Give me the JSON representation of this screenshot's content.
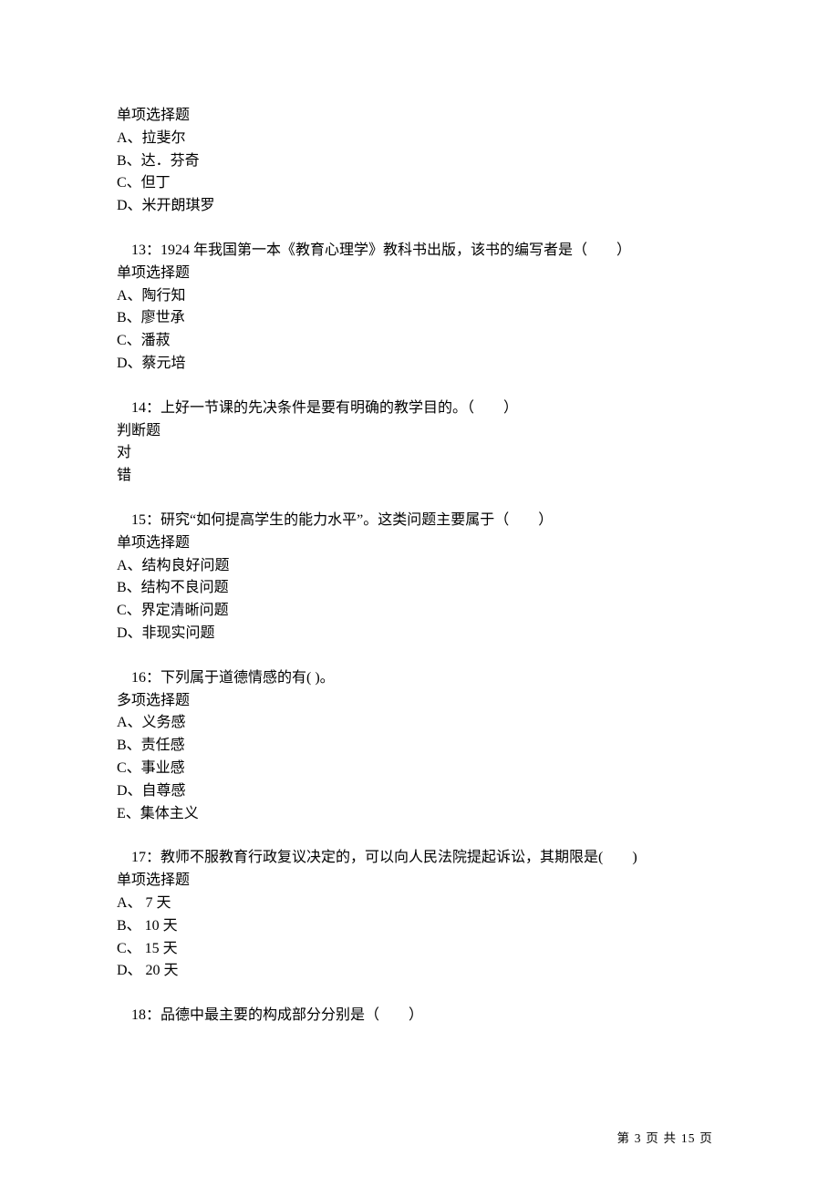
{
  "q12": {
    "type": "单项选择题",
    "options": {
      "a": "A、拉斐尔",
      "b": "B、达．芬奇",
      "c": "C、但丁",
      "d": "D、米开朗琪罗"
    }
  },
  "q13": {
    "title": "13：1924 年我国第一本《教育心理学》教科书出版，该书的编写者是（　　）",
    "type": "单项选择题",
    "options": {
      "a": "A、陶行知",
      "b": "B、廖世承",
      "c": "C、潘菽",
      "d": "D、蔡元培"
    }
  },
  "q14": {
    "title": "14：上好一节课的先决条件是要有明确的教学目的。（　　）",
    "type": "判断题",
    "options": {
      "a": "对",
      "b": "错"
    }
  },
  "q15": {
    "title": "15：研究“如何提高学生的能力水平”。这类问题主要属于（　　）",
    "type": "单项选择题",
    "options": {
      "a": "A、结构良好问题",
      "b": "B、结构不良问题",
      "c": "C、界定清晰问题",
      "d": "D、非现实问题"
    }
  },
  "q16": {
    "title": "16：下列属于道德情感的有( )。",
    "type": "多项选择题",
    "options": {
      "a": "A、义务感",
      "b": "B、责任感",
      "c": "C、事业感",
      "d": "D、自尊感",
      "e": "E、集体主义"
    }
  },
  "q17": {
    "title": "17：教师不服教育行政复议决定的，可以向人民法院提起诉讼，其期限是(　　)",
    "type": "单项选择题",
    "options": {
      "a": "A、 7 天",
      "b": "B、 10 天",
      "c": "C、 15 天",
      "d": "D、 20 天"
    }
  },
  "q18": {
    "title": "18：品德中最主要的构成部分分别是（　　）"
  },
  "footer": "第 3 页 共 15 页"
}
